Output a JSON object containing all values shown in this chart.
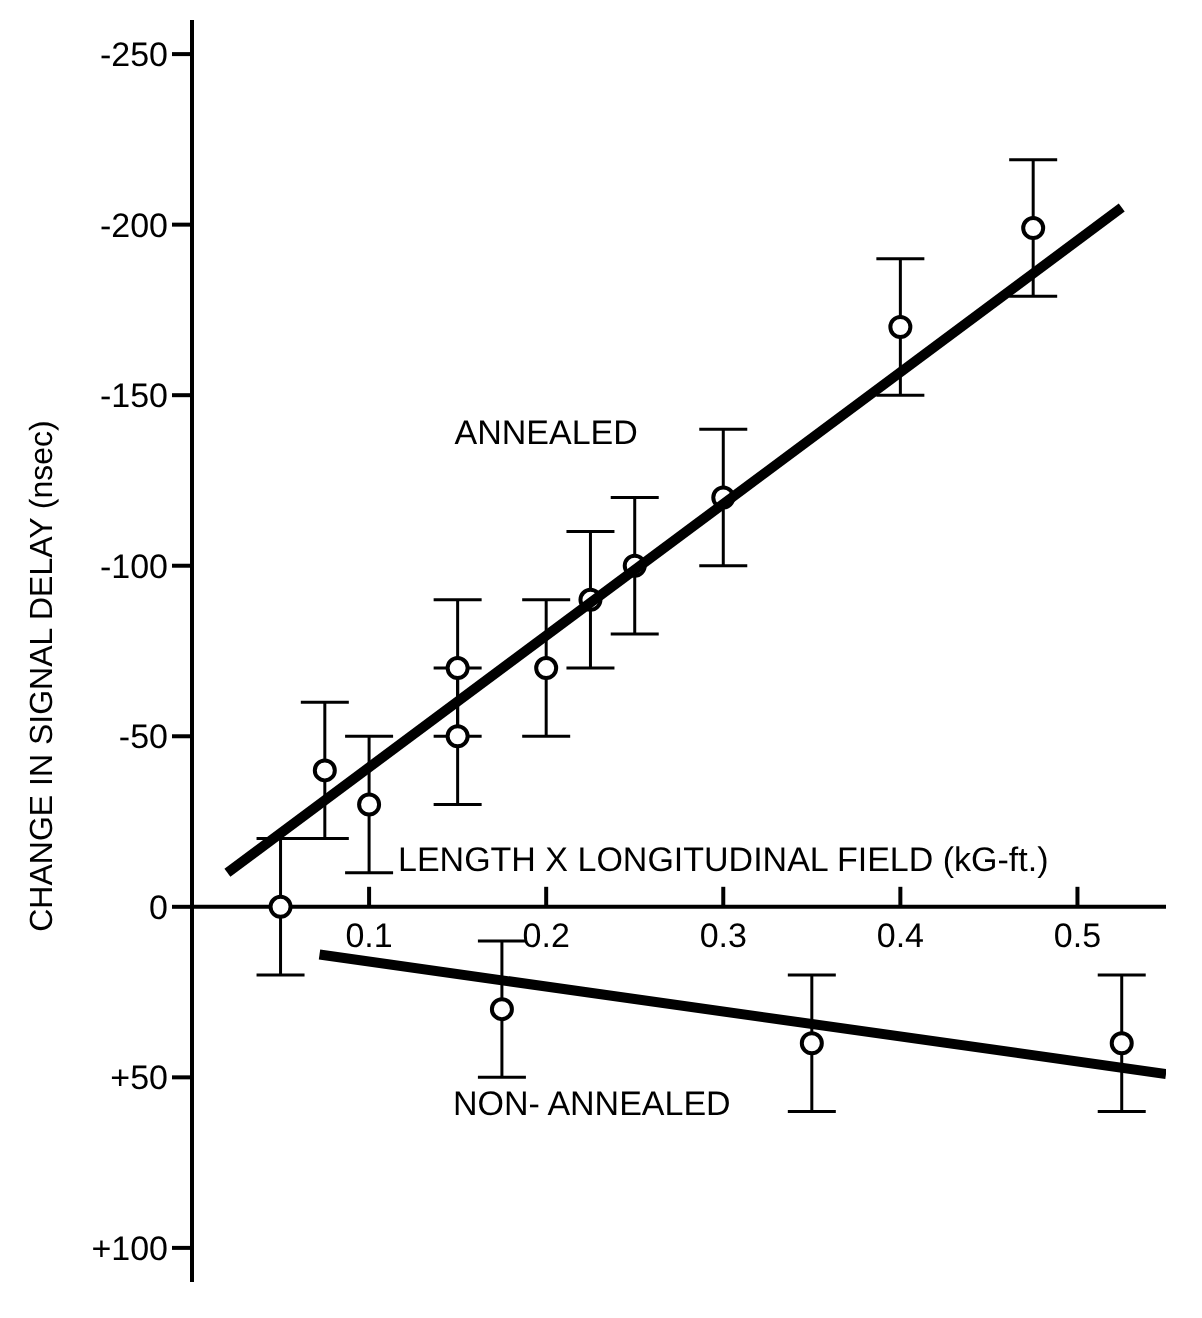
{
  "chart_data": {
    "type": "scatter",
    "xlabel": "LENGTH X LONGITUDINAL FIELD (kG-ft.)",
    "ylabel": "CHANGE IN SIGNAL DELAY (nsec)",
    "xlim": [
      0,
      0.55
    ],
    "xticks": [
      0.1,
      0.2,
      0.3,
      0.4,
      0.5
    ],
    "ylim": [
      110,
      -260
    ],
    "yticks": [
      {
        "value": -250,
        "label": "-250"
      },
      {
        "value": -200,
        "label": "-200"
      },
      {
        "value": -150,
        "label": "-150"
      },
      {
        "value": -100,
        "label": "-100"
      },
      {
        "value": -50,
        "label": "-50"
      },
      0,
      {
        "value": 50,
        "label": "+50"
      },
      {
        "value": 100,
        "label": "+100"
      }
    ],
    "marker": "circle",
    "series": [
      {
        "name": "ANNEALED",
        "type": "scatter",
        "color": "#000000",
        "x": [
          0.05,
          0.075,
          0.1,
          0.15,
          0.15,
          0.2,
          0.225,
          0.25,
          0.3,
          0.4,
          0.475
        ],
        "values": [
          0,
          -40,
          -30,
          -70,
          -50,
          -70,
          -90,
          -100,
          -120,
          -170,
          -199
        ],
        "errors": [
          20,
          20,
          20,
          20,
          20,
          20,
          20,
          20,
          20,
          20,
          20
        ]
      },
      {
        "type": "line",
        "color": "#000000",
        "marker": "none",
        "x": [
          0.02,
          0.525
        ],
        "values": [
          -10,
          -205
        ]
      },
      {
        "name": "NON- ANNEALED",
        "type": "scatter",
        "color": "#000000",
        "x": [
          0.175,
          0.35,
          0.525
        ],
        "values": [
          30,
          40,
          40
        ],
        "errors": [
          20,
          20,
          20
        ]
      },
      {
        "type": "line",
        "color": "#000000",
        "marker": "none",
        "x": [
          0.072,
          0.55
        ],
        "values": [
          14,
          49
        ]
      }
    ]
  }
}
